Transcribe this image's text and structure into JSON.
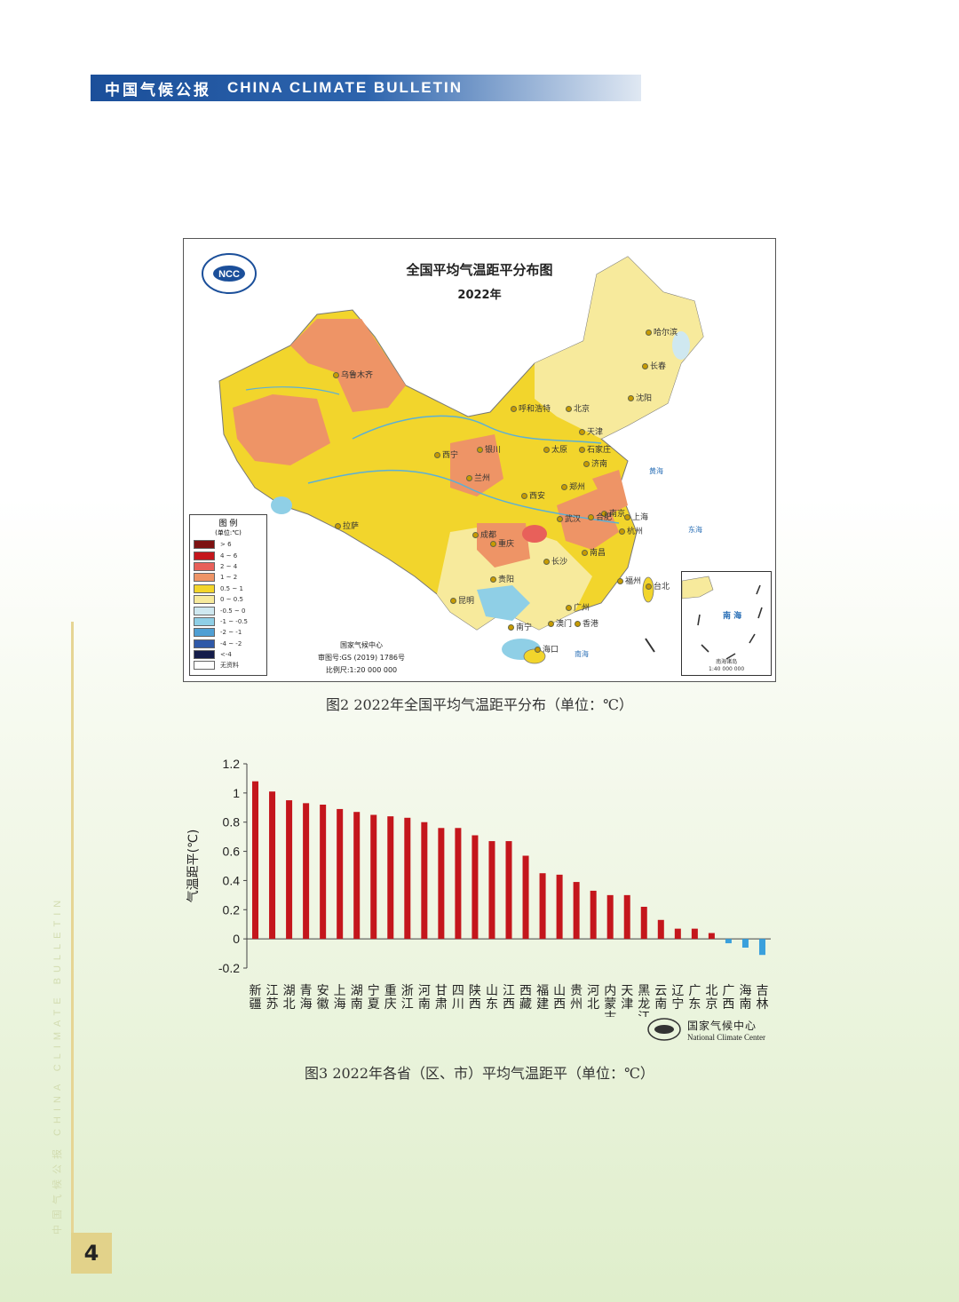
{
  "header": {
    "cn": "中国气候公报",
    "en": "CHINA CLIMATE BULLETIN"
  },
  "side": {
    "text": "中国气候公报   CHINA CLIMATE BULLETIN"
  },
  "page": {
    "number": "4"
  },
  "map": {
    "title": "全国平均气温距平分布图",
    "year": "2022年",
    "logo_text": "NCC",
    "legend_title": "图 例",
    "legend_unit": "(单位:℃)",
    "legend": [
      {
        "label": "> 6",
        "color": "#7d1111"
      },
      {
        "label": "4 ~ 6",
        "color": "#c4161c"
      },
      {
        "label": "2 ~ 4",
        "color": "#e8605a"
      },
      {
        "label": "1 ~ 2",
        "color": "#ee9466"
      },
      {
        "label": "0.5 ~ 1",
        "color": "#f3d52a"
      },
      {
        "label": "0 ~ 0.5",
        "color": "#f7ea9c"
      },
      {
        "label": "-0.5 ~ 0",
        "color": "#cfe8f0"
      },
      {
        "label": "-1 ~ -0.5",
        "color": "#8fcfe6"
      },
      {
        "label": "-2 ~ -1",
        "color": "#4f9fd4"
      },
      {
        "label": "-4 ~ -2",
        "color": "#2f59a8"
      },
      {
        "label": "<-4",
        "color": "#141c4a"
      },
      {
        "label": "无资料",
        "color": "#ffffff"
      }
    ],
    "credit_org": "国家气候中心",
    "credit_review": "审图号:GS (2019) 1786号",
    "credit_scale": "比例尺:1:20 000 000",
    "inset_sea": "南 海",
    "inset_caption": "南海诸岛",
    "inset_scale": "1:40 000 000",
    "cities": [
      "乌鲁木齐",
      "哈尔滨",
      "长春",
      "沈阳",
      "呼和浩特",
      "北京",
      "天津",
      "石家庄",
      "太原",
      "济南",
      "西宁",
      "银川",
      "兰州",
      "郑州",
      "西安",
      "南京",
      "合肥",
      "上海",
      "武汉",
      "杭州",
      "成都",
      "重庆",
      "长沙",
      "南昌",
      "拉萨",
      "贵阳",
      "福州",
      "台北",
      "昆明",
      "广州",
      "南宁",
      "澳门",
      "香港",
      "海口"
    ],
    "seas": [
      "黄海",
      "东海",
      "南海"
    ]
  },
  "captions": {
    "fig2": "图2 2022年全国平均气温距平分布（单位：℃）",
    "fig3": "图3 2022年各省（区、市）平均气温距平（单位：℃）"
  },
  "chart_data": {
    "type": "bar",
    "title": "",
    "ylabel": "气温距平(℃)",
    "xlabel": "",
    "ylim": [
      -0.2,
      1.2
    ],
    "yticks": [
      "1.2",
      "1",
      "0.8",
      "0.6",
      "0.4",
      "0.2",
      "0",
      "-0.2"
    ],
    "categories": [
      "新疆",
      "江苏",
      "湖北",
      "青海",
      "安徽",
      "上海",
      "湖南",
      "宁夏",
      "重庆",
      "浙江",
      "河南",
      "甘肃",
      "四川",
      "陕西",
      "山东",
      "江西",
      "西藏",
      "福建",
      "山西",
      "贵州",
      "河北",
      "内蒙古",
      "天津",
      "黑龙江",
      "云南",
      "辽宁",
      "广东",
      "北京",
      "广西",
      "海南",
      "吉林"
    ],
    "values": [
      1.08,
      1.01,
      0.95,
      0.93,
      0.92,
      0.89,
      0.87,
      0.85,
      0.84,
      0.83,
      0.8,
      0.76,
      0.76,
      0.71,
      0.67,
      0.67,
      0.57,
      0.45,
      0.44,
      0.39,
      0.33,
      0.3,
      0.3,
      0.22,
      0.13,
      0.07,
      0.07,
      0.04,
      -0.03,
      -0.06,
      -0.11
    ],
    "pos_color": "#c4161c",
    "neg_color": "#3aa0dc"
  },
  "footer": {
    "cn": "国家气候中心",
    "en": "National Climate Center"
  }
}
